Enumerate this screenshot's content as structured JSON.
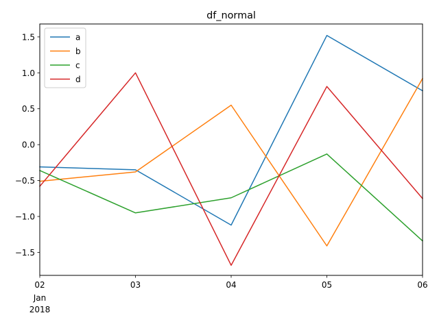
{
  "chart_data": {
    "type": "line",
    "title": "df_normal",
    "xlabel": "",
    "ylabel": "",
    "categories": [
      "02",
      "03",
      "04",
      "05",
      "06"
    ],
    "category_sublabels": [
      [
        "Jan",
        "2018"
      ],
      [],
      [],
      [],
      []
    ],
    "ylim": [
      -1.82,
      1.68
    ],
    "yticks": [
      1.5,
      1.0,
      0.5,
      0.0,
      -0.5,
      -1.0,
      -1.5
    ],
    "ytick_labels": [
      "1.5",
      "1.0",
      "0.5",
      "0.0",
      "−0.5",
      "−1.0",
      "−1.5"
    ],
    "legend_position": "upper-left",
    "grid": false,
    "series": [
      {
        "name": "a",
        "color": "#1f77b4",
        "values": [
          -0.31,
          -0.35,
          -1.12,
          1.52,
          0.75
        ]
      },
      {
        "name": "b",
        "color": "#ff7f0e",
        "values": [
          -0.51,
          -0.38,
          0.55,
          -1.41,
          0.92
        ]
      },
      {
        "name": "c",
        "color": "#2ca02c",
        "values": [
          -0.36,
          -0.95,
          -0.74,
          -0.13,
          -1.34
        ]
      },
      {
        "name": "d",
        "color": "#d62728",
        "values": [
          -0.58,
          1.0,
          -1.68,
          0.81,
          -0.75
        ]
      }
    ]
  }
}
